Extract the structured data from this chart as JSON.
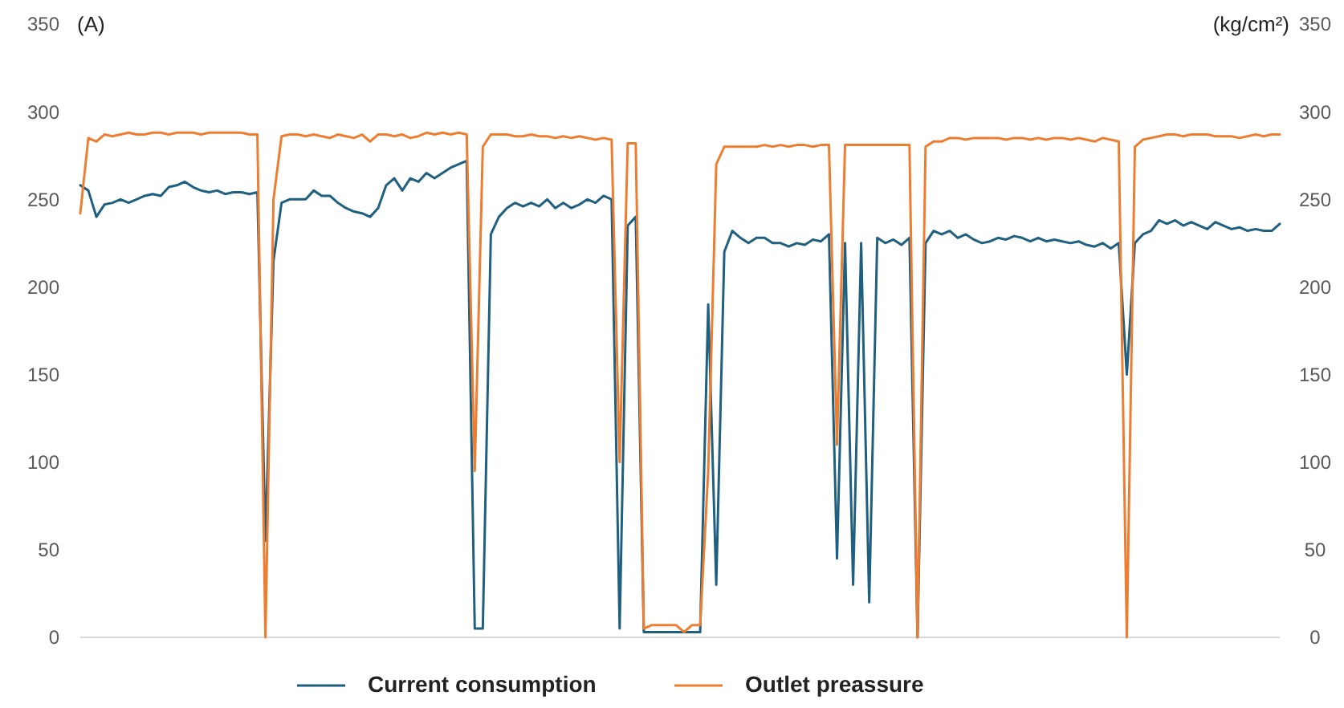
{
  "chart_data": {
    "type": "line",
    "ylabel": "(A)",
    "y2label": "(kg/cm²)",
    "categories": [
      null,
      null,
      null,
      null,
      null,
      null,
      null,
      null,
      null,
      null,
      null,
      null,
      null,
      null,
      null,
      null,
      null,
      null,
      null,
      null,
      null,
      null,
      null,
      null,
      null,
      null,
      null,
      null,
      null,
      null,
      null,
      null,
      null,
      null,
      null,
      null,
      null,
      null,
      null,
      null,
      null,
      null,
      null,
      null,
      null,
      null,
      null,
      null,
      null,
      null,
      null,
      null,
      null,
      null,
      null,
      null,
      null,
      null,
      null,
      null,
      null,
      null,
      null,
      null,
      null,
      null,
      null,
      null,
      null,
      null,
      null,
      null,
      null,
      null,
      null,
      null,
      null,
      null,
      null,
      null,
      null,
      null,
      null,
      null,
      null,
      null,
      null,
      null,
      null,
      null,
      null,
      null,
      null,
      null,
      null,
      null,
      null,
      null,
      null,
      null,
      null,
      null,
      null,
      null,
      null,
      null,
      null,
      null,
      null,
      null,
      null,
      null,
      null,
      null,
      null,
      null,
      null,
      null,
      null,
      null,
      null,
      null,
      null,
      null,
      null,
      null,
      null,
      null,
      null,
      null,
      null,
      null,
      null,
      null,
      null,
      null,
      null,
      null,
      null,
      null,
      null,
      null,
      null,
      null,
      null,
      null,
      null,
      null,
      null,
      null
    ],
    "series": [
      {
        "name": "Current consumption",
        "color": "#1f5f80",
        "values": [
          258,
          255,
          240,
          247,
          248,
          250,
          248,
          250,
          252,
          253,
          252,
          257,
          258,
          260,
          257,
          255,
          254,
          255,
          253,
          254,
          254,
          253,
          254,
          55,
          215,
          248,
          250,
          250,
          250,
          255,
          252,
          252,
          248,
          245,
          243,
          242,
          240,
          245,
          258,
          262,
          255,
          262,
          260,
          265,
          262,
          265,
          268,
          270,
          272,
          5,
          5,
          230,
          240,
          245,
          248,
          246,
          248,
          246,
          250,
          245,
          248,
          245,
          247,
          250,
          248,
          252,
          250,
          5,
          235,
          240,
          3,
          3,
          3,
          3,
          3,
          3,
          3,
          3,
          190,
          30,
          220,
          232,
          228,
          225,
          228,
          228,
          225,
          225,
          223,
          225,
          224,
          227,
          226,
          230,
          45,
          225,
          30,
          225,
          20,
          228,
          225,
          227,
          224,
          228,
          0,
          225,
          232,
          230,
          232,
          228,
          230,
          227,
          225,
          226,
          228,
          227,
          229,
          228,
          226,
          228,
          226,
          227,
          226,
          225,
          226,
          224,
          223,
          225,
          222,
          225,
          150,
          225,
          230,
          232,
          238,
          236,
          238,
          235,
          237,
          235,
          233,
          237,
          235,
          233,
          234,
          232,
          233,
          232,
          232,
          236
        ]
      },
      {
        "name": "Outlet preassure",
        "color": "#ed7d31",
        "axis": "y2",
        "values": [
          242,
          285,
          283,
          287,
          286,
          287,
          288,
          287,
          287,
          288,
          288,
          287,
          288,
          288,
          288,
          287,
          288,
          288,
          288,
          288,
          288,
          287,
          287,
          0,
          250,
          286,
          287,
          287,
          286,
          287,
          286,
          285,
          287,
          286,
          285,
          287,
          283,
          287,
          287,
          286,
          287,
          285,
          286,
          288,
          287,
          288,
          287,
          288,
          287,
          95,
          280,
          287,
          287,
          287,
          286,
          286,
          287,
          286,
          286,
          285,
          286,
          285,
          286,
          285,
          284,
          285,
          284,
          100,
          282,
          282,
          5,
          7,
          7,
          7,
          7,
          3,
          7,
          7,
          95,
          270,
          280,
          280,
          280,
          280,
          280,
          281,
          280,
          281,
          280,
          281,
          281,
          280,
          281,
          281,
          110,
          281,
          281,
          281,
          281,
          281,
          281,
          281,
          281,
          281,
          0,
          280,
          283,
          283,
          285,
          285,
          284,
          285,
          285,
          285,
          285,
          284,
          285,
          285,
          284,
          285,
          284,
          285,
          285,
          284,
          285,
          284,
          283,
          285,
          284,
          283,
          0,
          280,
          284,
          285,
          286,
          287,
          287,
          286,
          287,
          287,
          287,
          286,
          286,
          286,
          285,
          286,
          287,
          286,
          287,
          287
        ]
      }
    ],
    "ylim": [
      0,
      350
    ],
    "yticks": [
      0,
      50,
      100,
      150,
      200,
      250,
      300,
      350
    ],
    "y2lim": [
      0,
      350
    ],
    "y2ticks": [
      0,
      50,
      100,
      150,
      200,
      250,
      300,
      350
    ],
    "grid": false,
    "legend": "bottom",
    "tick_labels": "y"
  }
}
